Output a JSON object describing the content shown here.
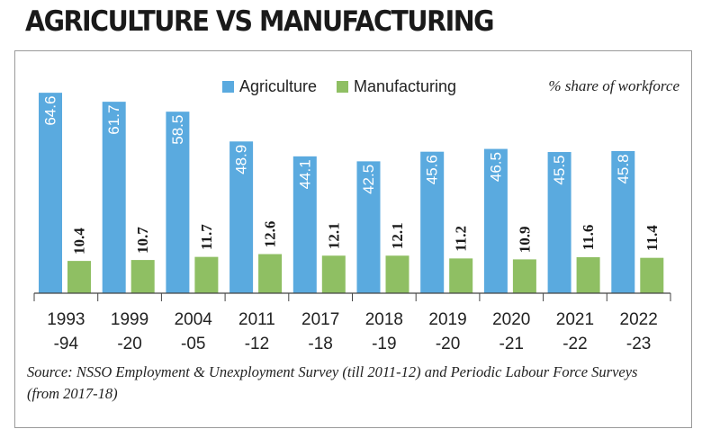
{
  "title": "AGRICULTURE VS MANUFACTURING",
  "legend": {
    "agriculture": "Agriculture",
    "manufacturing": "Manufacturing"
  },
  "unit_note": "% share of workforce",
  "source": "Source: NSSO Employment & Unexployment Survey (till 2011-12) and Periodic Labour Force Surveys (from 2017-18)",
  "colors": {
    "agriculture": "#5aaadf",
    "manufacturing": "#8fbf63",
    "axis": "#444444"
  },
  "chart_data": {
    "type": "bar",
    "title": "AGRICULTURE VS MANUFACTURING",
    "ylabel": "% share of workforce",
    "xlabel": "",
    "ylim": [
      0,
      70
    ],
    "categories": [
      [
        "1993",
        "-94"
      ],
      [
        "1999",
        "-20"
      ],
      [
        "2004",
        "-05"
      ],
      [
        "2011",
        "-12"
      ],
      [
        "2017",
        "-18"
      ],
      [
        "2018",
        "-19"
      ],
      [
        "2019",
        "-20"
      ],
      [
        "2020",
        "-21"
      ],
      [
        "2021",
        "-22"
      ],
      [
        "2022",
        "-23"
      ]
    ],
    "series": [
      {
        "name": "Agriculture",
        "values": [
          64.6,
          61.7,
          58.5,
          48.9,
          44.1,
          42.5,
          45.6,
          46.5,
          45.5,
          45.8
        ]
      },
      {
        "name": "Manufacturing",
        "values": [
          10.4,
          10.7,
          11.7,
          12.6,
          12.1,
          12.1,
          11.2,
          10.9,
          11.6,
          11.4
        ]
      }
    ]
  }
}
